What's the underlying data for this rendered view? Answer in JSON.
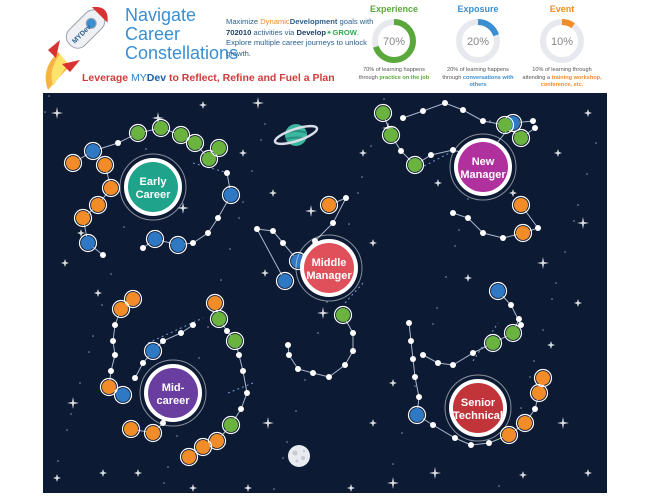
{
  "header": {
    "title_lines": [
      "Navigate",
      "Career",
      "Constellations"
    ],
    "rocket_label": "MYDev",
    "tagline": {
      "part1": "Leverage ",
      "brand_prefix": "MY",
      "brand_suffix": "Dev",
      "part2": " to Reflect, Refine and Fuel a Plan"
    },
    "intro": {
      "t1": "Maximize ",
      "dd1": "Dynamic",
      "dd2": "Development",
      "t2": " goals with ",
      "model": "702010",
      "t3": " activities via ",
      "develop": "Develop",
      "grow": "GROW",
      "t4": ". Explore multiple career journeys to unlock growth."
    }
  },
  "metrics": [
    {
      "title": "Experience",
      "value": 70,
      "label": "70%",
      "color": "#5aa83c",
      "desc_a": "70% of learning happens through ",
      "desc_b": "practice on the job"
    },
    {
      "title": "Exposure",
      "value": 20,
      "label": "20%",
      "color": "#3a8fd3",
      "desc_a": "20% of learning happens through ",
      "desc_b": "conversations with others"
    },
    {
      "title": "Event",
      "value": 10,
      "label": "10%",
      "color": "#f28c28",
      "desc_a": "10% of learning through attending a ",
      "desc_b": "training workshop, conference, etc."
    }
  ],
  "stages": [
    {
      "id": "early-career",
      "lines": [
        "Early",
        "Career"
      ],
      "color": "#1fa38a"
    },
    {
      "id": "new-manager",
      "lines": [
        "New",
        "Manager"
      ],
      "color": "#b0309e"
    },
    {
      "id": "middle-manager",
      "lines": [
        "Middle",
        "Manager"
      ],
      "color": "#e0505a"
    },
    {
      "id": "mid-career",
      "lines": [
        "Mid-",
        "career"
      ],
      "color": "#6a3ea1"
    },
    {
      "id": "senior-technical",
      "lines": [
        "Senior",
        "Technical"
      ],
      "color": "#c0343a"
    }
  ],
  "colors": {
    "background": "#0c1a34",
    "experience_dot": "#6ab33e",
    "exposure_dot": "#2f78c4",
    "event_dot": "#f28c28"
  },
  "icons": {
    "rocket": "rocket-icon",
    "planet": "ringed-planet-icon",
    "moon": "moon-icon",
    "star": "sparkle-star-icon"
  }
}
